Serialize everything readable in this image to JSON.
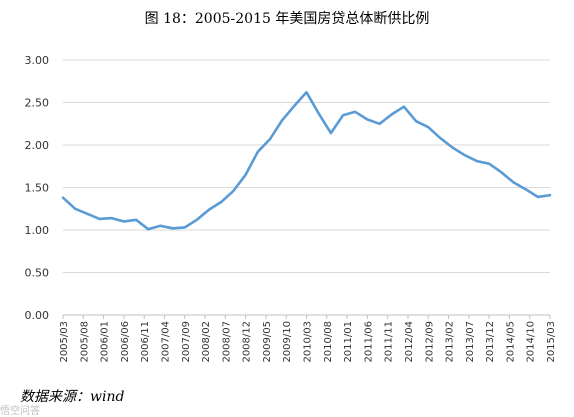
{
  "title": "图 18：2005-2015 年美国房贷总体断供比例",
  "source": "数据来源：wind",
  "watermark": "悟空问答",
  "chart_data": {
    "type": "line",
    "title": "图 18：2005-2015 年美国房贷总体断供比例",
    "xlabel": "",
    "ylabel": "",
    "ylim": [
      0,
      3
    ],
    "yticks": [
      "0.00",
      "0.50",
      "1.00",
      "1.50",
      "2.00",
      "2.50",
      "3.00"
    ],
    "grid": true,
    "color": "#5b9bd5",
    "categories": [
      "2005/03",
      "2005/08",
      "2006/01",
      "2006/06",
      "2006/11",
      "2007/04",
      "2007/09",
      "2008/02",
      "2008/07",
      "2008/12",
      "2009/05",
      "2009/10",
      "2010/03",
      "2010/08",
      "2011/01",
      "2011/06",
      "2011/11",
      "2012/04",
      "2012/09",
      "2013/02",
      "2013/07",
      "2013/12",
      "2014/05",
      "2014/10",
      "2015/03"
    ],
    "series": [
      {
        "x": [
          "2005/03",
          "2005/06",
          "2005/09",
          "2005/12",
          "2006/03",
          "2006/06",
          "2006/09",
          "2006/12",
          "2007/03",
          "2007/06",
          "2007/09",
          "2007/12",
          "2008/03",
          "2008/06",
          "2008/09",
          "2008/12",
          "2009/03",
          "2009/06",
          "2009/09",
          "2009/12",
          "2010/03",
          "2010/06",
          "2010/09",
          "2010/12",
          "2011/03",
          "2011/06",
          "2011/09",
          "2011/12",
          "2012/03",
          "2012/06",
          "2012/09",
          "2012/12",
          "2013/03",
          "2013/06",
          "2013/09",
          "2013/12",
          "2014/03",
          "2014/06",
          "2014/09",
          "2014/12",
          "2015/03"
        ],
        "values": [
          1.38,
          1.25,
          1.19,
          1.13,
          1.14,
          1.1,
          1.12,
          1.01,
          1.05,
          1.02,
          1.03,
          1.12,
          1.24,
          1.33,
          1.46,
          1.65,
          1.92,
          2.07,
          2.29,
          2.46,
          2.62,
          2.37,
          2.14,
          2.35,
          2.39,
          2.3,
          2.25,
          2.36,
          2.45,
          2.28,
          2.21,
          2.08,
          1.97,
          1.88,
          1.81,
          1.78,
          1.68,
          1.56,
          1.48,
          1.39,
          1.41
        ]
      }
    ]
  }
}
